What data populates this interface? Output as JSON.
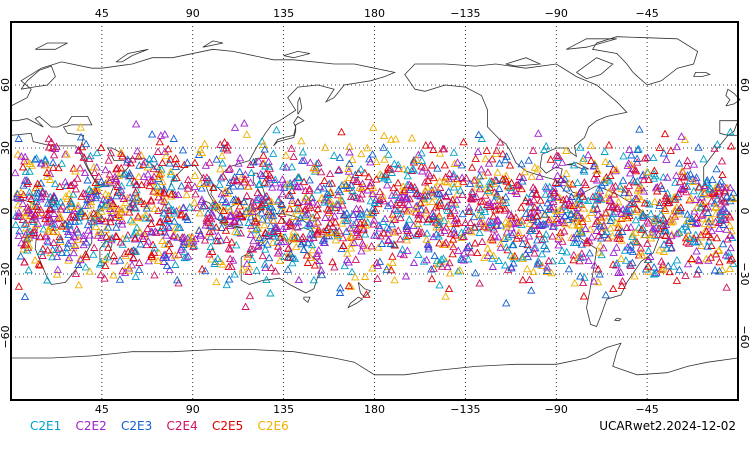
{
  "map": {
    "lon_top_ticks": [
      "45",
      "90",
      "135",
      "180",
      "−135",
      "−90",
      "−45"
    ],
    "lon_bottom_ticks": [
      "45",
      "90",
      "135",
      "180",
      "−135",
      "−90",
      "−45"
    ],
    "lat_left_ticks": [
      "60",
      "30",
      "0",
      "−30",
      "−60"
    ],
    "lat_right_ticks": [
      "60",
      "30",
      "0",
      "−30",
      "−60"
    ],
    "lon_range": [
      0,
      360
    ],
    "lat_range": [
      -90,
      90
    ],
    "gridlines": "dotted",
    "marker": "triangle"
  },
  "legend": {
    "items": [
      {
        "label": "C2E1",
        "color": "#00a0c8"
      },
      {
        "label": "C2E2",
        "color": "#a020d0"
      },
      {
        "label": "C2E3",
        "color": "#1060d0"
      },
      {
        "label": "C2E4",
        "color": "#d01060"
      },
      {
        "label": "C2E5",
        "color": "#e00000"
      },
      {
        "label": "C2E6",
        "color": "#f0b000"
      }
    ]
  },
  "footer": {
    "product": "UCARwet2.2024-12-02"
  }
}
